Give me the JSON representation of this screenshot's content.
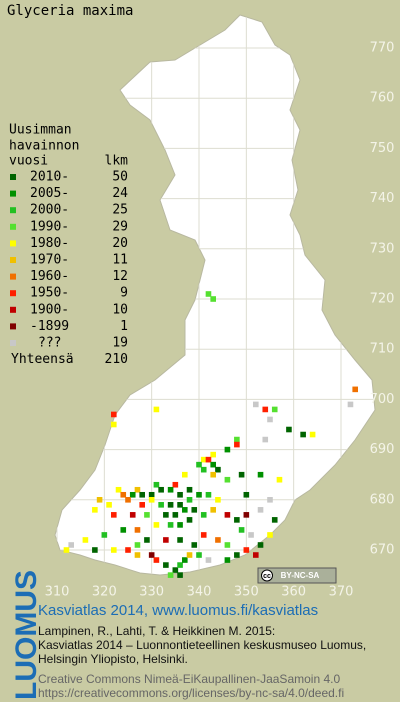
{
  "title": "Glyceria maxima",
  "legend": {
    "title_lines": [
      "Uusimman",
      "havainnon"
    ],
    "year_header": "vuosi",
    "count_header": "lkm",
    "entries": [
      {
        "label": "2010-",
        "count": 50,
        "color": "#006400"
      },
      {
        "label": "2005-",
        "count": 24,
        "color": "#009000"
      },
      {
        "label": "2000-",
        "count": 25,
        "color": "#22c022"
      },
      {
        "label": "1990-",
        "count": 29,
        "color": "#55e030"
      },
      {
        "label": "1980-",
        "count": 20,
        "color": "#ffff00"
      },
      {
        "label": "1970-",
        "count": 11,
        "color": "#f0c000"
      },
      {
        "label": "1960-",
        "count": 12,
        "color": "#f07000"
      },
      {
        "label": "1950-",
        "count": 9,
        "color": "#ff2000"
      },
      {
        "label": "1900-",
        "count": 10,
        "color": "#c00000"
      },
      {
        "label": "-1899",
        "count": 1,
        "color": "#800000"
      },
      {
        "label": "???",
        "count": 19,
        "color": "#c8c8c8"
      }
    ],
    "total_label": "Yhteensä",
    "total": 210
  },
  "map": {
    "xlim": [
      310,
      370
    ],
    "ylim": [
      670,
      770
    ],
    "xticks": [
      310,
      320,
      330,
      340,
      350,
      360,
      370
    ],
    "yticks": [
      670,
      680,
      690,
      700,
      710,
      720,
      730,
      740,
      750,
      760,
      770
    ],
    "points": [
      [
        342,
        721,
        3
      ],
      [
        343,
        720,
        3
      ],
      [
        373,
        702,
        6
      ],
      [
        372,
        699,
        10
      ],
      [
        322,
        697,
        7
      ],
      [
        322,
        695,
        4
      ],
      [
        331,
        698,
        4
      ],
      [
        352,
        699,
        10
      ],
      [
        354,
        698,
        7
      ],
      [
        356,
        698,
        3
      ],
      [
        355,
        696,
        10
      ],
      [
        359,
        694,
        0
      ],
      [
        362,
        693,
        0
      ],
      [
        364,
        693,
        4
      ],
      [
        354,
        692,
        10
      ],
      [
        348,
        692,
        3
      ],
      [
        348,
        691,
        7
      ],
      [
        346,
        690,
        1
      ],
      [
        343,
        689,
        4
      ],
      [
        341,
        688,
        4
      ],
      [
        342,
        688,
        7
      ],
      [
        340,
        687,
        2
      ],
      [
        343,
        687,
        1
      ],
      [
        341,
        686,
        2
      ],
      [
        344,
        686,
        0
      ],
      [
        343,
        685,
        5
      ],
      [
        337,
        685,
        4
      ],
      [
        349,
        685,
        0
      ],
      [
        353,
        685,
        1
      ],
      [
        357,
        684,
        4
      ],
      [
        346,
        684,
        3
      ],
      [
        335,
        683,
        7
      ],
      [
        331,
        683,
        2
      ],
      [
        327,
        682,
        5
      ],
      [
        323,
        682,
        4
      ],
      [
        324,
        681,
        6
      ],
      [
        326,
        681,
        1
      ],
      [
        328,
        681,
        0
      ],
      [
        330,
        681,
        0
      ],
      [
        332,
        682,
        0
      ],
      [
        334,
        682,
        1
      ],
      [
        336,
        681,
        0
      ],
      [
        338,
        682,
        0
      ],
      [
        340,
        681,
        1
      ],
      [
        342,
        681,
        2
      ],
      [
        344,
        680,
        4
      ],
      [
        350,
        681,
        0
      ],
      [
        355,
        680,
        10
      ],
      [
        338,
        680,
        2
      ],
      [
        336,
        679,
        0
      ],
      [
        334,
        679,
        0
      ],
      [
        332,
        679,
        2
      ],
      [
        330,
        680,
        4
      ],
      [
        328,
        679,
        7
      ],
      [
        325,
        680,
        6
      ],
      [
        321,
        679,
        4
      ],
      [
        319,
        680,
        5
      ],
      [
        318,
        678,
        4
      ],
      [
        322,
        677,
        7
      ],
      [
        326,
        677,
        8
      ],
      [
        329,
        677,
        3
      ],
      [
        333,
        677,
        0
      ],
      [
        335,
        677,
        0
      ],
      [
        337,
        678,
        1
      ],
      [
        339,
        678,
        0
      ],
      [
        341,
        677,
        2
      ],
      [
        343,
        678,
        5
      ],
      [
        346,
        677,
        8
      ],
      [
        348,
        676,
        0
      ],
      [
        350,
        677,
        9
      ],
      [
        353,
        678,
        10
      ],
      [
        356,
        676,
        0
      ],
      [
        338,
        676,
        0
      ],
      [
        336,
        675,
        1
      ],
      [
        334,
        675,
        2
      ],
      [
        331,
        675,
        4
      ],
      [
        327,
        674,
        6
      ],
      [
        324,
        674,
        1
      ],
      [
        320,
        673,
        2
      ],
      [
        316,
        672,
        4
      ],
      [
        313,
        671,
        10
      ],
      [
        312,
        670,
        4
      ],
      [
        318,
        670,
        0
      ],
      [
        322,
        670,
        4
      ],
      [
        325,
        670,
        7
      ],
      [
        327,
        671,
        3
      ],
      [
        329,
        672,
        0
      ],
      [
        333,
        672,
        8
      ],
      [
        336,
        672,
        0
      ],
      [
        339,
        671,
        0
      ],
      [
        341,
        673,
        7
      ],
      [
        344,
        672,
        6
      ],
      [
        346,
        671,
        3
      ],
      [
        349,
        674,
        2
      ],
      [
        351,
        673,
        10
      ],
      [
        355,
        673,
        4
      ],
      [
        353,
        671,
        0
      ],
      [
        327,
        669,
        5
      ],
      [
        330,
        669,
        9
      ],
      [
        333,
        667,
        0
      ],
      [
        335,
        666,
        0
      ],
      [
        336,
        667,
        2
      ],
      [
        337,
        668,
        1
      ],
      [
        340,
        669,
        2
      ],
      [
        342,
        668,
        10
      ],
      [
        346,
        668,
        1
      ],
      [
        348,
        669,
        0
      ],
      [
        350,
        670,
        7
      ],
      [
        352,
        669,
        8
      ],
      [
        334,
        665,
        3
      ],
      [
        336,
        665,
        0
      ],
      [
        338,
        669,
        5
      ],
      [
        331,
        668,
        7
      ]
    ]
  },
  "badge": {
    "cc": "cc",
    "text": "BY-NC-SA"
  },
  "logo": "LUOMUS",
  "footer": {
    "heading": "Kasviatlas 2014, www.luomus.fi/kasviatlas",
    "citation": [
      "Lampinen, R., Lahti, T. & Heikkinen M. 2015:",
      "Kasviatlas 2014 – Luonnontieteellinen keskusmuseo Luomus,",
      "Helsingin Yliopisto, Helsinki."
    ],
    "license": [
      "Creative Commons Nimeä-EiKaupallinen-JaaSamoin 4.0",
      "https://creativecommons.org/licenses/by-nc-sa/4.0/deed.fi"
    ]
  }
}
